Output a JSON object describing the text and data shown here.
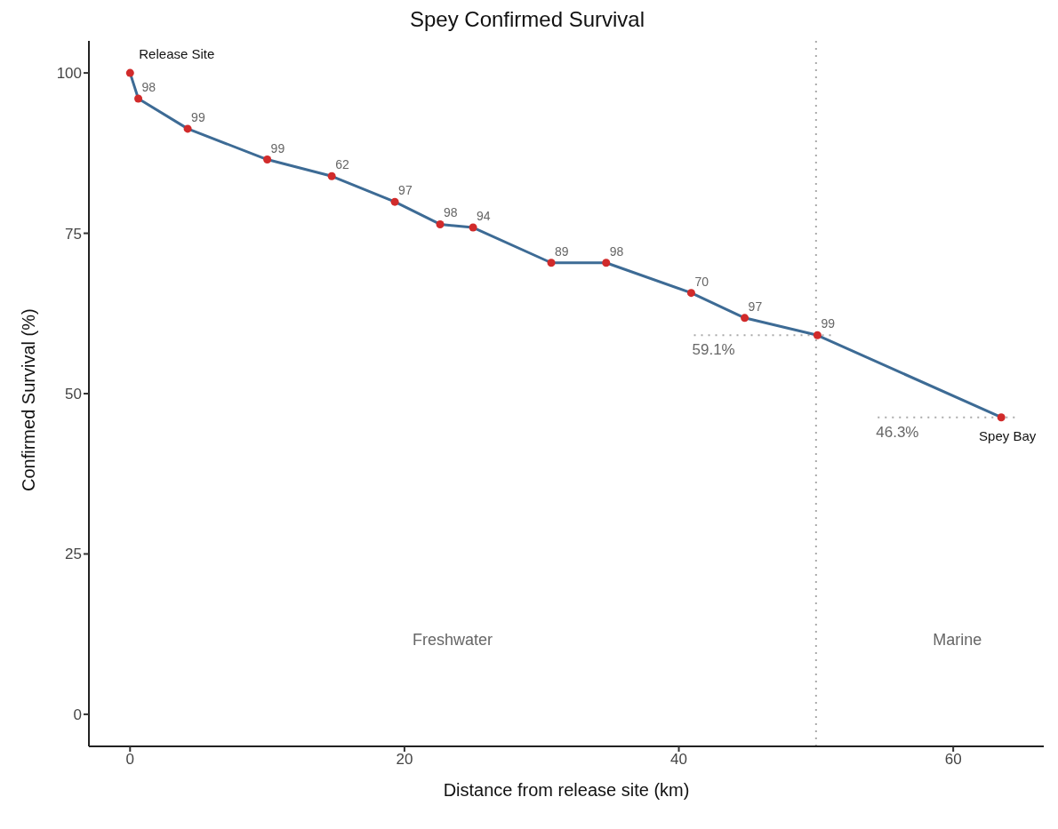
{
  "chart_data": {
    "type": "line",
    "title": "Spey Confirmed Survival",
    "xlabel": "Distance from release site (km)",
    "ylabel": "Confirmed Survival (%)",
    "x": [
      0,
      0.6,
      4.2,
      10.0,
      14.7,
      19.3,
      22.6,
      25.0,
      30.7,
      34.7,
      40.9,
      44.8,
      50.1,
      63.5
    ],
    "series": [
      {
        "color": "#3d6b95",
        "marker": "none",
        "values": [
          100,
          96.0,
          91.3,
          86.5,
          83.9,
          79.9,
          76.4,
          75.9,
          70.4,
          70.4,
          65.7,
          61.8,
          59.1,
          46.3
        ]
      },
      {
        "type": "scatter",
        "color": "#d12b2b",
        "marker": "circle",
        "values": [
          100,
          96.0,
          91.3,
          86.5,
          83.9,
          79.9,
          76.4,
          75.9,
          70.4,
          70.4,
          65.7,
          61.8,
          59.1,
          46.3
        ]
      }
    ],
    "xlim": [
      -3,
      66.6
    ],
    "ylim": [
      -5,
      105
    ],
    "xticks": [
      0,
      20,
      40,
      60
    ],
    "yticks": [
      0,
      25,
      50,
      75,
      100
    ],
    "grid": false,
    "legend": false,
    "ref_lines": [
      {
        "axis": "x",
        "value": 50,
        "color": "#aaaaaa",
        "line_style": "dotted"
      },
      {
        "axis": "y",
        "value": 59.1,
        "label": "59.1%",
        "color": "#aaaaaa",
        "line_style": "dotted"
      },
      {
        "axis": "y",
        "value": 46.3,
        "label": "46.3%",
        "color": "#aaaaaa",
        "line_style": "dotted"
      }
    ],
    "annotations": [
      {
        "text": "Release Site",
        "x": 0,
        "y": 100
      },
      {
        "text": "98",
        "x": 0.6,
        "y": 96.0
      },
      {
        "text": "99",
        "x": 4.2,
        "y": 91.3
      },
      {
        "text": "99",
        "x": 10.0,
        "y": 86.5
      },
      {
        "text": "62",
        "x": 14.7,
        "y": 83.9
      },
      {
        "text": "97",
        "x": 19.3,
        "y": 79.9
      },
      {
        "text": "98",
        "x": 22.6,
        "y": 76.4
      },
      {
        "text": "94",
        "x": 25.0,
        "y": 75.9
      },
      {
        "text": "89",
        "x": 30.7,
        "y": 70.4
      },
      {
        "text": "98",
        "x": 34.7,
        "y": 70.4
      },
      {
        "text": "70",
        "x": 40.9,
        "y": 65.7
      },
      {
        "text": "97",
        "x": 44.8,
        "y": 61.8
      },
      {
        "text": "99",
        "x": 50.1,
        "y": 59.1
      },
      {
        "text": "Spey Bay",
        "x": 63.5,
        "y": 46.3
      },
      "Freshwater",
      "Marine"
    ]
  }
}
